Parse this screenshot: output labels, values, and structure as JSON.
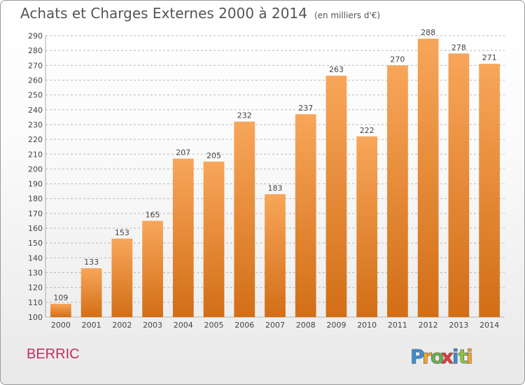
{
  "title": "Achats et Charges Externes 2000 à 2014",
  "subtitle": "(en milliers d'€)",
  "location": "BERRIC",
  "brand": {
    "name": "Proxiti",
    "letters": [
      "P",
      "r",
      "o",
      "x",
      "i",
      "t",
      "i"
    ],
    "colors": [
      "#3b8fd4",
      "#f5a623",
      "#6ab04c",
      "#e33c3c",
      "#3b8fd4",
      "#8cc63f",
      "#f5a623"
    ]
  },
  "colors": {
    "bar_top": "#f8a65a",
    "bar_bottom": "#d26e16",
    "grid": "#b8b8b8",
    "axis_text": "#444444",
    "title_text": "#555555",
    "location_text": "#c03060"
  },
  "chart_data": {
    "type": "bar",
    "categories": [
      "2000",
      "2001",
      "2002",
      "2003",
      "2004",
      "2005",
      "2006",
      "2007",
      "2008",
      "2009",
      "2010",
      "2011",
      "2012",
      "2013",
      "2014"
    ],
    "values": [
      109,
      133,
      153,
      165,
      207,
      205,
      232,
      183,
      237,
      263,
      222,
      270,
      288,
      278,
      271
    ],
    "title": "Achats et Charges Externes 2000 à 2014",
    "subtitle": "(en milliers d'€)",
    "xlabel": "",
    "ylabel": "",
    "ylim": [
      100,
      290
    ],
    "yticks": [
      100,
      110,
      120,
      130,
      140,
      150,
      160,
      170,
      180,
      190,
      200,
      210,
      220,
      230,
      240,
      250,
      260,
      270,
      280,
      290
    ],
    "grid": true,
    "grid_style": "dashed",
    "data_labels": true
  }
}
